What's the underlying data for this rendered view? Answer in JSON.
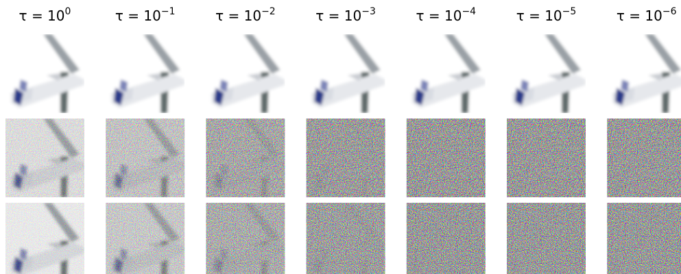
{
  "columns": [
    {
      "label": "τ = 10",
      "exponent": "0"
    },
    {
      "label": "τ = 10",
      "exponent": "−1"
    },
    {
      "label": "τ = 10",
      "exponent": "−2"
    },
    {
      "label": "τ = 10",
      "exponent": "−3"
    },
    {
      "label": "τ = 10",
      "exponent": "−4"
    },
    {
      "label": "τ = 10",
      "exponent": "−5"
    },
    {
      "label": "τ = 10",
      "exponent": "−6"
    }
  ]
}
